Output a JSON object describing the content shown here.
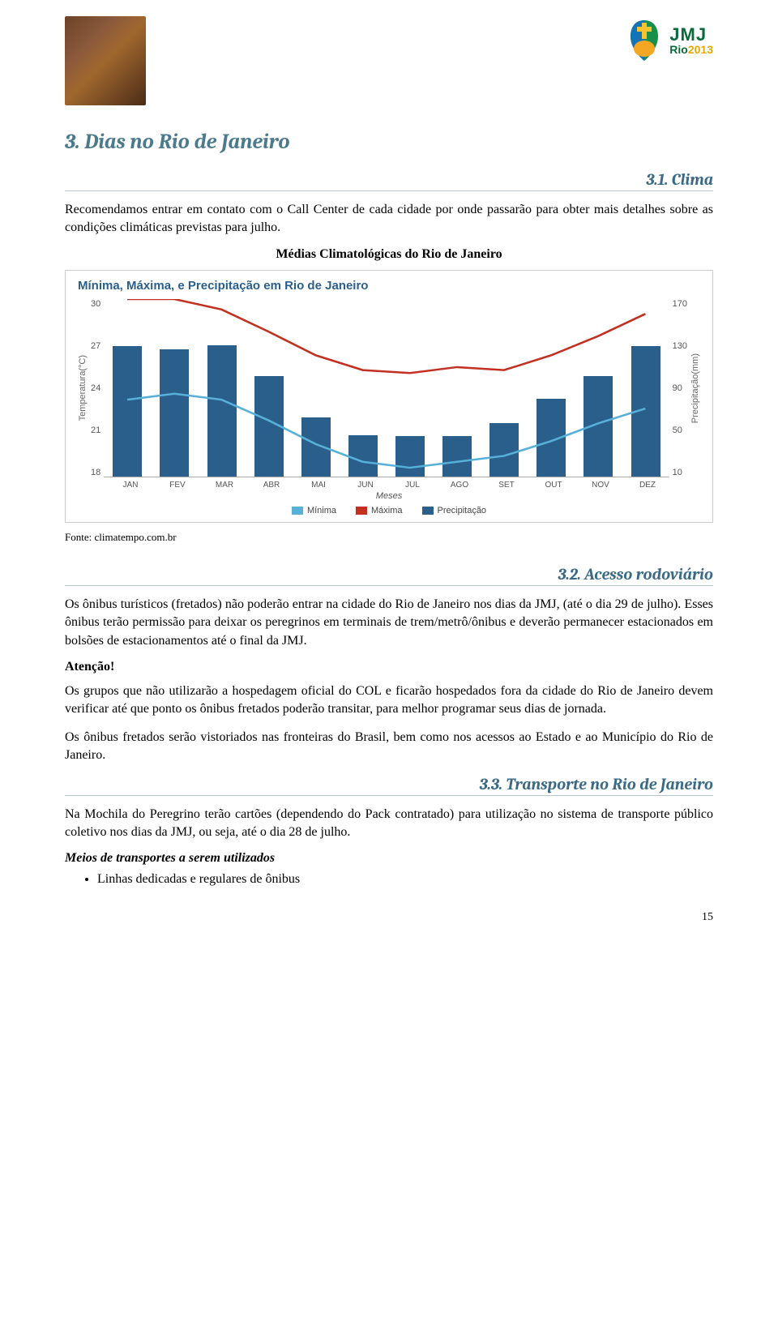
{
  "header": {
    "logo_right": {
      "jmj": "JMJ",
      "rio": "Rio",
      "year": "2013"
    }
  },
  "section_title": "3. Dias no Rio de Janeiro",
  "sub1_title": "3.1. Clima",
  "para1": "Recomendamos entrar em contato com o Call Center de cada cidade por onde passarão para obter mais detalhes sobre as condições climáticas previstas para julho.",
  "chart_heading": "Médias Climatológicas do Rio de Janeiro",
  "chart": {
    "type": "combo-bar-line",
    "title": "Mínima, Máxima, e Precipitação em Rio de Janeiro",
    "x_label": "Meses",
    "y_left_label": "Temperatura(°C)",
    "y_right_label": "Precipitação(mm)",
    "y_left": {
      "min": 18,
      "max": 30,
      "ticks": [
        30,
        27,
        24,
        21,
        18
      ]
    },
    "y_right": {
      "min": 10,
      "max": 170,
      "ticks": [
        170,
        130,
        90,
        50,
        10
      ]
    },
    "months": [
      "JAN",
      "FEV",
      "MAR",
      "ABR",
      "MAI",
      "JUN",
      "JUL",
      "AGO",
      "SET",
      "OUT",
      "NOV",
      "DEZ"
    ],
    "precip": [
      127,
      124,
      128,
      100,
      63,
      47,
      46,
      46,
      58,
      80,
      100,
      127
    ],
    "maxima": [
      30.0,
      30.0,
      29.3,
      27.8,
      26.2,
      25.2,
      25.0,
      25.4,
      25.2,
      26.2,
      27.5,
      29.0
    ],
    "minima": [
      23.2,
      23.6,
      23.2,
      21.8,
      20.2,
      19.0,
      18.6,
      19.0,
      19.4,
      20.4,
      21.6,
      22.6
    ],
    "colors": {
      "bar": "#2a5f8c",
      "line_max": "#c23022",
      "line_min": "#56b0d8",
      "title": "#2a5f8c",
      "tick": "#555555",
      "border": "#cccccc",
      "bg": "#ffffff"
    },
    "bar_width_ratio": 0.62,
    "line_width": 2.5,
    "font_family": "Arial",
    "legend": {
      "items": [
        {
          "label": "Mínima",
          "color": "#56b0d8"
        },
        {
          "label": "Máxima",
          "color": "#c23022"
        },
        {
          "label": "Precipitação",
          "color": "#2a5f8c"
        }
      ]
    }
  },
  "source": "Fonte: climatempo.com.br",
  "sub2_title": "3.2. Acesso rodoviário",
  "para2": "Os ônibus turísticos (fretados) não poderão entrar na cidade do Rio de Janeiro nos dias da JMJ, (até o dia 29 de julho). Esses ônibus terão permissão para deixar os peregrinos em terminais de trem/metrô/ônibus e deverão permanecer estacionados em bolsões de estacionamentos até o final da JMJ.",
  "attention": "Atenção!",
  "para3": "Os grupos que não utilizarão a hospedagem oficial do COL e ficarão hospedados fora da cidade do Rio de Janeiro devem verificar até que ponto os ônibus fretados poderão transitar, para melhor programar seus dias de jornada.",
  "para4": "Os ônibus fretados serão vistoriados nas fronteiras do Brasil, bem como nos acessos ao Estado e ao Município do Rio de Janeiro.",
  "sub3_title": "3.3. Transporte no Rio de Janeiro",
  "para5": "Na Mochila do Peregrino terão cartões (dependendo do Pack contratado) para utilização no sistema de transporte público coletivo nos dias da JMJ, ou seja, até o dia 28 de julho.",
  "means_heading": "Meios de transportes a serem utilizados",
  "bullet1": "Linhas dedicadas e regulares de ônibus",
  "page_number": "15"
}
